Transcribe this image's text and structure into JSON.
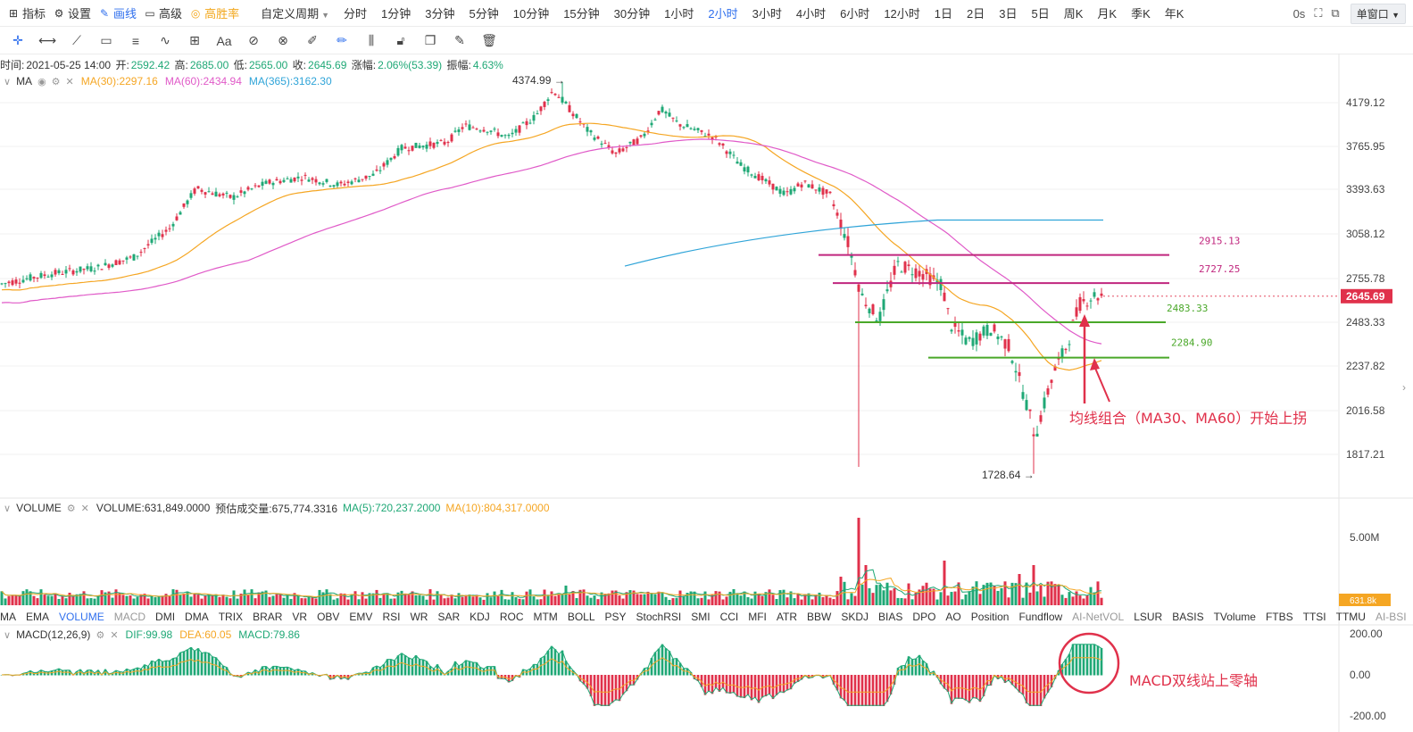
{
  "toolbar": {
    "items": [
      {
        "label": "指标",
        "icon": "indicator-icon"
      },
      {
        "label": "设置",
        "icon": "gear-icon"
      },
      {
        "label": "画线",
        "icon": "pen-icon"
      },
      {
        "label": "高级",
        "icon": "folder-icon"
      },
      {
        "label": "高胜率",
        "icon": "target-icon"
      }
    ],
    "custom_period": "自定义周期",
    "periods": [
      "分时",
      "1分钟",
      "3分钟",
      "5分钟",
      "10分钟",
      "15分钟",
      "30分钟",
      "1小时",
      "2小时",
      "3小时",
      "4小时",
      "6小时",
      "12小时",
      "1日",
      "2日",
      "3日",
      "5日",
      "周K",
      "月K",
      "季K",
      "年K"
    ],
    "active_period": "2小时",
    "latency": "0s",
    "window_mode": "单窗口"
  },
  "drawing_tools": [
    "crosshair-icon",
    "horizontal-line-icon",
    "trend-line-icon",
    "rectangle-icon",
    "parallel-channel-icon",
    "wave-icon",
    "measure-icon",
    "text-icon",
    "fib-icon",
    "pattern-icon",
    "ruler-icon",
    "brush-icon",
    "candle-icon",
    "lock-icon",
    "copy-icon",
    "note-icon",
    "trash-icon"
  ],
  "info": {
    "time_label": "时间:",
    "time": "2021-05-25 14:00",
    "open_label": "开:",
    "open": "2592.42",
    "high_label": "高:",
    "high": "2685.00",
    "low_label": "低:",
    "low": "2565.00",
    "close_label": "收:",
    "close": "2645.69",
    "change_label": "涨幅:",
    "change": "2.06%(53.39)",
    "amp_label": "振幅:",
    "amp": "4.63%"
  },
  "ma": {
    "name": "MA",
    "ma30": "MA(30):2297.16",
    "ma60": "MA(60):2434.94",
    "ma365": "MA(365):3162.30",
    "colors": {
      "ma30": "#f5a623",
      "ma60": "#e05ac8",
      "ma365": "#2fa4d8"
    }
  },
  "volume": {
    "name": "VOLUME",
    "value": "VOLUME:631,849.0000",
    "estimated": "预估成交量:675,774.3316",
    "ma5": "MA(5):720,237.2000",
    "ma10": "MA(10):804,317.0000",
    "axis_max": "5.00M",
    "axis_zero": "0",
    "tag": "631.8k"
  },
  "macd": {
    "name": "MACD(12,26,9)",
    "dif": "DIF:99.98",
    "dea": "DEA:60.05",
    "macd": "MACD:79.86",
    "axis": [
      "200.00",
      "0.00",
      "-200.00"
    ]
  },
  "price_axis": [
    "4179.12",
    "3765.95",
    "3393.63",
    "3058.12",
    "2755.78",
    "2483.33",
    "2237.82",
    "2016.58",
    "1817.21"
  ],
  "current_price": "2645.69",
  "annotations": {
    "high_marker": "4374.99 →",
    "low_marker": "1728.64 →",
    "levels": [
      "2915.13",
      "2727.25",
      "2483.33",
      "2284.90"
    ],
    "ma_note": "均线组合（MA30、MA60）开始上拐",
    "macd_note": "MACD双线站上零轴"
  },
  "indicators": [
    "MA",
    "EMA",
    "VOLUME",
    "MACD",
    "DMI",
    "DMA",
    "TRIX",
    "BRAR",
    "VR",
    "OBV",
    "EMV",
    "RSI",
    "WR",
    "SAR",
    "KDJ",
    "ROC",
    "MTM",
    "BOLL",
    "PSY",
    "StochRSI",
    "SMI",
    "CCI",
    "MFI",
    "ATR",
    "BBW",
    "SKDJ",
    "BIAS",
    "DPO",
    "AO",
    "Position",
    "Fundflow",
    "AI-NetVOL",
    "LSUR",
    "BASIS",
    "TVolume",
    "FTBS",
    "TTSI",
    "TTMU",
    "AI-BSI"
  ],
  "indicators_active": "VOLUME",
  "indicators_muted": [
    "MACD",
    "AI-NetVOL",
    "AI-BSI"
  ],
  "colors": {
    "up": "#1fa876",
    "down": "#e0314b",
    "accent": "#2f6fed",
    "level_magenta": "#c0267e",
    "level_green": "#4aa829"
  }
}
